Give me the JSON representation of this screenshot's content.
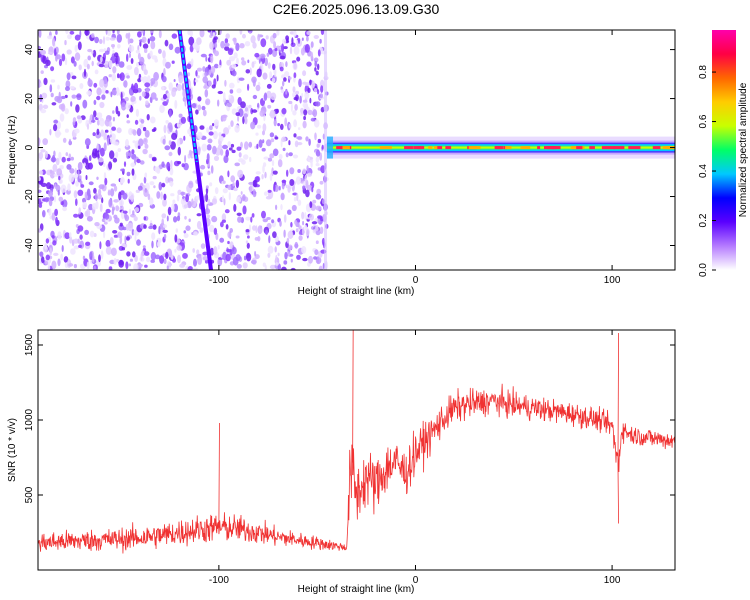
{
  "title": "C2E6.2025.096.13.09.G30",
  "chart_data": [
    {
      "type": "heatmap",
      "xlabel": "Height of straight line (km)",
      "ylabel": "Frequency (Hz)",
      "xlim": [
        -192,
        132
      ],
      "ylim": [
        -50,
        48
      ],
      "xticks": [
        -100,
        0,
        100
      ],
      "yticks": [
        -40,
        -20,
        0,
        20,
        40
      ],
      "grid": false,
      "colorbar": {
        "label": "Normalized spectral amplitude",
        "range": [
          0,
          0.97
        ],
        "ticks": [
          "0.0",
          "0.2",
          "0.4",
          "0.6",
          "0.8"
        ],
        "tick_values": [
          0,
          0.2,
          0.4,
          0.6,
          0.8
        ],
        "colors": [
          "#ffffff",
          "#b57bff",
          "#5a00ff",
          "#0000ff",
          "#00c8ff",
          "#00ff66",
          "#c8ff00",
          "#ffcc00",
          "#ff6600",
          "#ff0044",
          "#ff00aa"
        ]
      },
      "features": {
        "noise_region_x": [
          -192,
          -45
        ],
        "tone_from_x": -45,
        "tone_frequency_hz": 0,
        "drifting_line_x_at_top": -120,
        "drifting_line_x_at_bottom": -104
      }
    },
    {
      "type": "line",
      "xlabel": "Height of straight line (km)",
      "ylabel": "SNR (10 * v/v)",
      "xlim": [
        -192,
        132
      ],
      "ylim": [
        0,
        1600
      ],
      "xticks": [
        -100,
        0,
        100
      ],
      "yticks": [
        500,
        1000,
        1500
      ],
      "grid": false,
      "series": [
        {
          "color": "#f03232",
          "x": [
            -192,
            -180,
            -170,
            -160,
            -150,
            -140,
            -130,
            -120,
            -110,
            -100,
            -90,
            -80,
            -70,
            -60,
            -50,
            -40,
            -35,
            -33,
            -30,
            -25,
            -20,
            -15,
            -10,
            -5,
            0,
            5,
            10,
            15,
            20,
            25,
            30,
            35,
            40,
            45,
            50,
            60,
            70,
            80,
            90,
            95,
            100,
            103,
            105,
            110,
            120,
            132
          ],
          "values": [
            180,
            190,
            195,
            200,
            205,
            215,
            230,
            250,
            270,
            285,
            275,
            250,
            220,
            200,
            180,
            160,
            150,
            700,
            500,
            620,
            560,
            680,
            720,
            640,
            780,
            860,
            940,
            1020,
            1080,
            1100,
            1110,
            1120,
            1130,
            1110,
            1100,
            1080,
            1060,
            1040,
            1010,
            990,
            960,
            700,
            940,
            900,
            880,
            860
          ],
          "band": [
            110,
            110,
            110,
            115,
            120,
            125,
            130,
            140,
            150,
            150,
            140,
            120,
            100,
            80,
            70,
            50,
            40,
            400,
            350,
            300,
            300,
            280,
            260,
            240,
            220,
            200,
            180,
            170,
            160,
            160,
            150,
            140,
            140,
            140,
            130,
            130,
            120,
            120,
            120,
            110,
            110,
            300,
            110,
            100,
            100,
            100
          ],
          "peaks": [
            [
              -100,
              980
            ],
            [
              -32,
              1600
            ],
            [
              103,
              1580
            ],
            [
              103,
              310
            ]
          ]
        }
      ]
    }
  ]
}
